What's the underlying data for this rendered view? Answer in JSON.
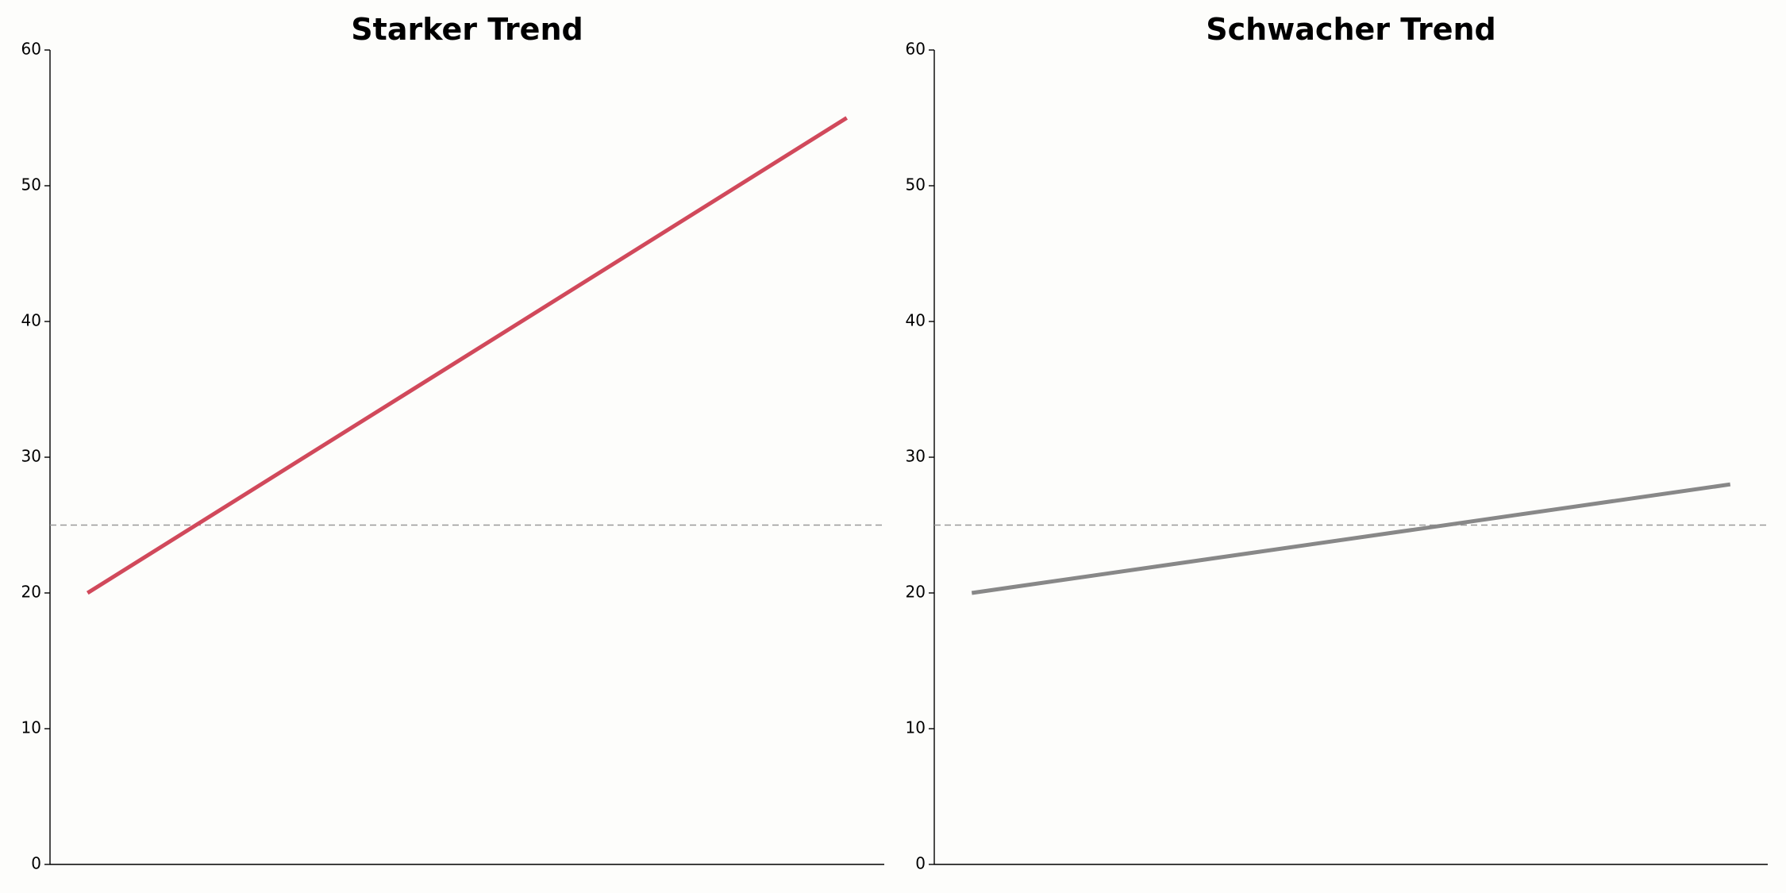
{
  "chart_data": [
    {
      "type": "line",
      "title": "Starker Trend",
      "categories": [
        null,
        null
      ],
      "values": [
        20,
        55
      ],
      "color": "#d1495b",
      "ylim": [
        0,
        60
      ],
      "yticks": [
        0,
        10,
        20,
        30,
        40,
        50,
        60
      ],
      "reference_line": 25,
      "reference_color": "#999999"
    },
    {
      "type": "line",
      "title": "Schwacher Trend",
      "categories": [
        null,
        null
      ],
      "values": [
        20,
        28
      ],
      "color": "#888888",
      "ylim": [
        0,
        60
      ],
      "yticks": [
        0,
        10,
        20,
        30,
        40,
        50,
        60
      ],
      "reference_line": 25,
      "reference_color": "#999999"
    }
  ]
}
